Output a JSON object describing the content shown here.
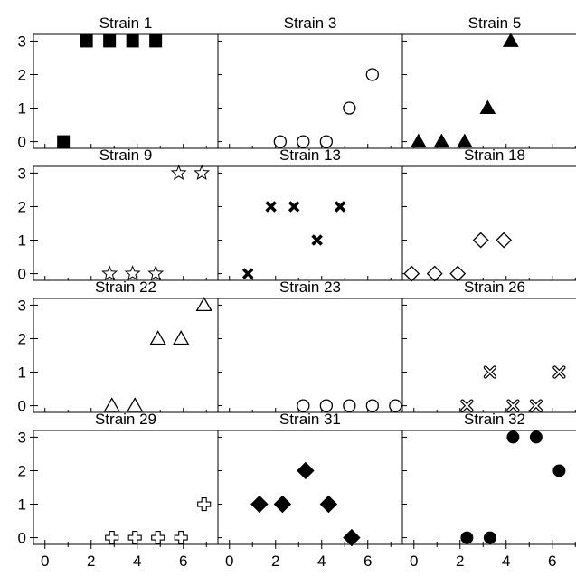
{
  "chart_data": {
    "type": "scatter",
    "layout": "4x3 small multiples",
    "xlim": [
      -0.5,
      7.5
    ],
    "ylim": [
      -0.2,
      3.2
    ],
    "xticks": [
      0,
      2,
      4,
      6
    ],
    "yticks": [
      0,
      1,
      2,
      3
    ],
    "panels": [
      {
        "title": "Strain 1",
        "marker": "square-filled",
        "x": [
          0.8,
          1.8,
          2.8,
          3.8,
          4.8
        ],
        "y": [
          0,
          3,
          3,
          3,
          3
        ]
      },
      {
        "title": "Strain 3",
        "marker": "circle-open",
        "x": [
          2.2,
          3.2,
          4.2,
          5.2,
          6.2
        ],
        "y": [
          0,
          0,
          0,
          1,
          2
        ]
      },
      {
        "title": "Strain 5",
        "marker": "triangle-filled",
        "x": [
          0.2,
          1.2,
          2.2,
          3.2,
          4.2
        ],
        "y": [
          0,
          0,
          0,
          1,
          3
        ]
      },
      {
        "title": "Strain 9",
        "marker": "star-open",
        "x": [
          2.8,
          3.8,
          4.8,
          5.8,
          6.8
        ],
        "y": [
          0,
          0,
          0,
          3,
          3
        ]
      },
      {
        "title": "Strain 13",
        "marker": "x-bold",
        "x": [
          0.8,
          1.8,
          2.8,
          3.8,
          4.8
        ],
        "y": [
          0,
          2,
          2,
          1,
          2
        ]
      },
      {
        "title": "Strain 18",
        "marker": "diamond-open",
        "x": [
          -0.1,
          0.9,
          1.9,
          2.9,
          3.9
        ],
        "y": [
          0,
          0,
          0,
          1,
          1
        ]
      },
      {
        "title": "Strain 22",
        "marker": "triangle-open",
        "x": [
          2.9,
          3.9,
          4.9,
          5.9,
          6.9
        ],
        "y": [
          0,
          0,
          2,
          2,
          3
        ]
      },
      {
        "title": "Strain 23",
        "marker": "circle-open",
        "x": [
          3.2,
          4.2,
          5.2,
          6.2,
          7.2
        ],
        "y": [
          0,
          0,
          0,
          0,
          0
        ]
      },
      {
        "title": "Strain 26",
        "marker": "x-open",
        "x": [
          2.3,
          3.3,
          4.3,
          5.3,
          6.3
        ],
        "y": [
          0,
          1,
          0,
          0,
          1
        ]
      },
      {
        "title": "Strain 29",
        "marker": "cross-open",
        "x": [
          2.9,
          3.9,
          4.9,
          5.9,
          6.9
        ],
        "y": [
          0,
          0,
          0,
          0,
          1
        ]
      },
      {
        "title": "Strain 31",
        "marker": "diamond-filled",
        "x": [
          1.3,
          2.3,
          3.3,
          4.3,
          5.3
        ],
        "y": [
          1,
          1,
          2,
          1,
          0
        ]
      },
      {
        "title": "Strain 32",
        "marker": "circle-filled",
        "x": [
          2.3,
          3.3,
          4.3,
          5.3,
          6.3
        ],
        "y": [
          0,
          0,
          3,
          3,
          2
        ]
      }
    ]
  }
}
